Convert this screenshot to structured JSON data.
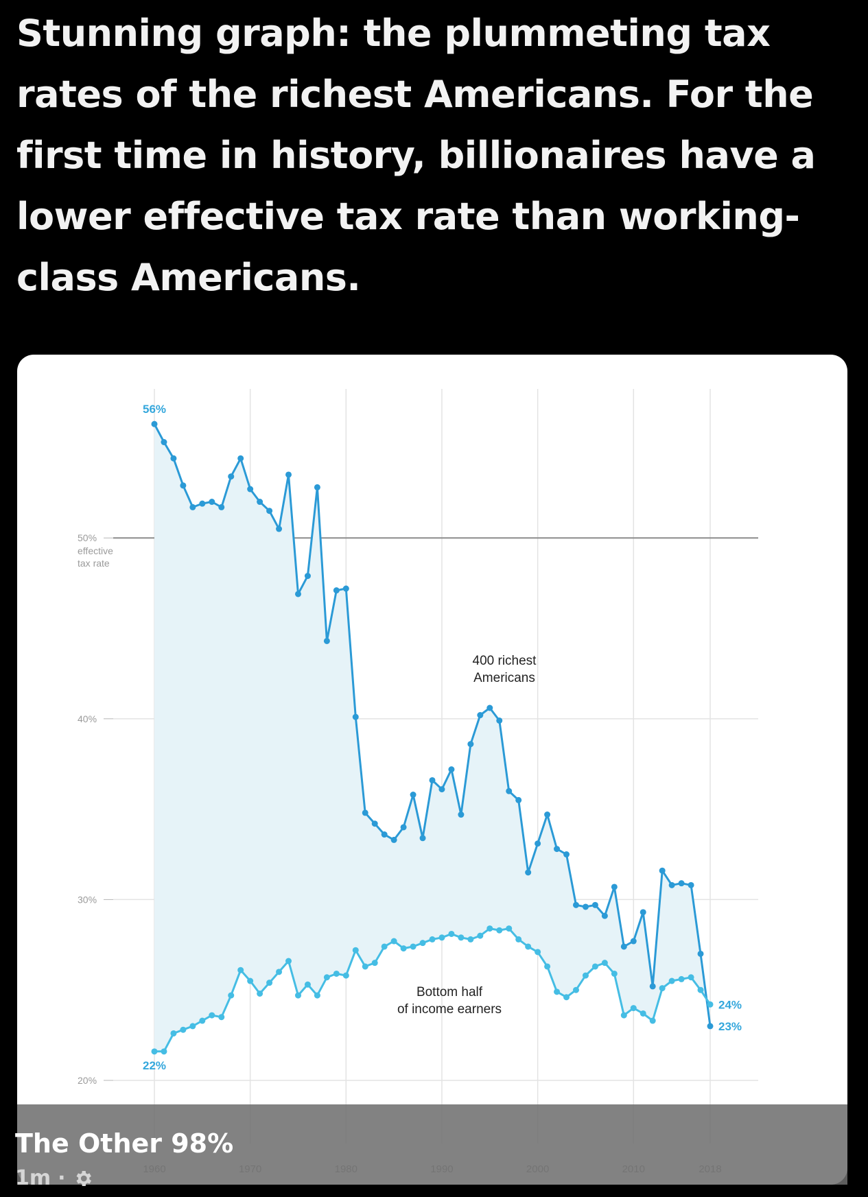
{
  "post": {
    "headline": "Stunning graph: the plummeting tax rates of the richest Americans. For the first time in history, billionaires have a lower effective tax rate than working-class Americans."
  },
  "caption": {
    "page_name": "The Other 98%",
    "time": "1m",
    "separator": "·",
    "icon": "gear-icon"
  },
  "colors": {
    "background": "#000000",
    "card": "#ffffff",
    "richest_line": "#2b9ad6",
    "bottom_line": "#45bde4",
    "fill": "#e6f3f8",
    "label_blue": "#34a7dc"
  },
  "chart_data": {
    "type": "line",
    "title": "",
    "xlabel": "",
    "ylabel": "effective tax rate",
    "xlim": [
      1960,
      2018
    ],
    "ylim": [
      20,
      59
    ],
    "x_ticks": [
      1960,
      1970,
      1980,
      1990,
      2000,
      2010,
      2018
    ],
    "x_tick_labels": [
      "1960",
      "1970",
      "1980",
      "1990",
      "2000",
      "2010",
      "2018"
    ],
    "y_ticks": [
      20,
      30,
      40,
      50
    ],
    "y_tick_labels": [
      "20%",
      "30%",
      "40%",
      "50%"
    ],
    "y_tick_sublabel": "effective\ntax rate",
    "grid": true,
    "shaded_area_between_series": true,
    "x": [
      1960,
      1961,
      1962,
      1963,
      1964,
      1965,
      1966,
      1967,
      1968,
      1969,
      1970,
      1971,
      1972,
      1973,
      1974,
      1975,
      1976,
      1977,
      1978,
      1979,
      1980,
      1981,
      1982,
      1983,
      1984,
      1985,
      1986,
      1987,
      1988,
      1989,
      1990,
      1991,
      1992,
      1993,
      1994,
      1995,
      1996,
      1997,
      1998,
      1999,
      2000,
      2001,
      2002,
      2003,
      2004,
      2005,
      2006,
      2007,
      2008,
      2009,
      2010,
      2011,
      2012,
      2013,
      2014,
      2015,
      2016,
      2017,
      2018
    ],
    "series": [
      {
        "name": "400 richest\nAmericans",
        "values": [
          56.3,
          55.3,
          54.4,
          52.9,
          51.7,
          51.9,
          52.0,
          51.7,
          53.4,
          54.4,
          52.7,
          52.0,
          51.5,
          50.5,
          53.5,
          46.9,
          47.9,
          52.8,
          44.3,
          47.1,
          47.2,
          40.1,
          34.8,
          34.2,
          33.6,
          33.3,
          34.0,
          35.8,
          33.4,
          36.6,
          36.1,
          37.2,
          34.7,
          38.6,
          40.2,
          40.6,
          39.9,
          36.0,
          35.5,
          31.5,
          33.1,
          34.7,
          32.8,
          32.5,
          29.7,
          29.6,
          29.7,
          29.1,
          30.7,
          27.4,
          27.7,
          29.3,
          25.2,
          31.6,
          30.8,
          30.9,
          30.8,
          27.0,
          23.0
        ]
      },
      {
        "name": "Bottom half\nof income earners",
        "values": [
          21.6,
          21.6,
          22.6,
          22.8,
          23.0,
          23.3,
          23.6,
          23.5,
          24.7,
          26.1,
          25.5,
          24.8,
          25.4,
          26.0,
          26.6,
          24.7,
          25.3,
          24.7,
          25.7,
          25.9,
          25.8,
          27.2,
          26.3,
          26.5,
          27.4,
          27.7,
          27.3,
          27.4,
          27.6,
          27.8,
          27.9,
          28.1,
          27.9,
          27.8,
          28.0,
          28.4,
          28.3,
          28.4,
          27.8,
          27.4,
          27.1,
          26.3,
          24.9,
          24.6,
          25.0,
          25.8,
          26.3,
          26.5,
          25.9,
          23.6,
          24.0,
          23.7,
          23.3,
          25.1,
          25.5,
          25.6,
          25.7,
          25.0,
          24.2
        ]
      }
    ],
    "annotations": {
      "start_richest": "56%",
      "start_bottom": "22%",
      "end_bottom": "24%",
      "end_richest": "23%"
    }
  }
}
